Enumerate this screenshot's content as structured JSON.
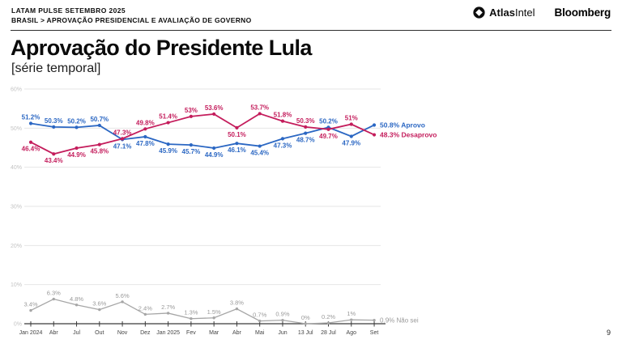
{
  "header": {
    "kicker": "LATAM PULSE SETEMBRO 2025",
    "breadcrumb": "BRASIL > APROVAÇÃO PRESIDENCIAL E AVALIAÇÃO DE GOVERNO",
    "logo_atlas_bold": "Atlas",
    "logo_atlas_light": "Intel",
    "logo_bloomberg": "Bloomberg"
  },
  "title": "Aprovação do Presidente Lula",
  "subtitle": "[série temporal]",
  "page_number": "9",
  "chart_data": {
    "type": "line",
    "title": "Aprovação do Presidente Lula [série temporal]",
    "x_labels": [
      "Jan 2024",
      "Abr",
      "Jul",
      "Out",
      "Nov",
      "Dez",
      "Jan 2025",
      "Fev",
      "Mar",
      "Abr",
      "Mai",
      "Jun",
      "13 Jul",
      "28 Jul",
      "Ago",
      "Set"
    ],
    "y_ticks": [
      0,
      10,
      20,
      30,
      40,
      50,
      60
    ],
    "ylim": [
      0,
      60
    ],
    "grid": true,
    "legend_position": "right-of-last-point",
    "series": [
      {
        "name": "Aprovo",
        "color": "#2b67c3",
        "values": [
          51.2,
          50.3,
          50.2,
          50.7,
          47.1,
          47.8,
          45.9,
          45.7,
          44.9,
          46.1,
          45.4,
          47.3,
          48.7,
          50.2,
          47.9,
          50.8
        ]
      },
      {
        "name": "Desaprovo",
        "color": "#c41d5c",
        "values": [
          46.4,
          43.4,
          44.9,
          45.8,
          47.3,
          49.8,
          51.4,
          53,
          53.6,
          50.1,
          53.7,
          51.8,
          50.3,
          49.7,
          51,
          48.3
        ],
        "label_below_indices": [
          9
        ]
      },
      {
        "name": "Não sei",
        "color": "#a6a6a6",
        "label_color": "#9a9a9a",
        "values": [
          3.4,
          6.3,
          4.8,
          3.6,
          5.6,
          2.4,
          2.7,
          1.3,
          1.5,
          3.8,
          0.7,
          0.9,
          0,
          0.2,
          1,
          0.9
        ]
      }
    ]
  }
}
